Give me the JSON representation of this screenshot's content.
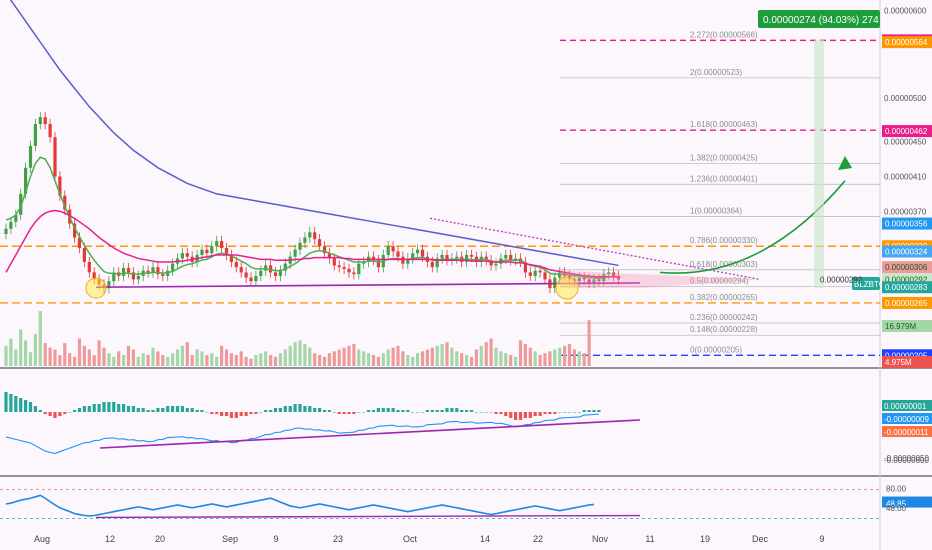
{
  "chart_data": {
    "type": "candlestick",
    "title": "",
    "symbol": "BLZBTC",
    "x_ticks": [
      "Aug",
      "12",
      "20",
      "Sep",
      "9",
      "23",
      "Oct",
      "14",
      "22",
      "Nov",
      "11",
      "19",
      "Dec",
      "9"
    ],
    "price_axis_ticks": [
      "0.00000600",
      "0.00000500",
      "0.00000450",
      "0.00000410",
      "0.00000370",
      "-0.00000600"
    ],
    "price_badges": [
      {
        "value": "0.00000566",
        "color": "#e91e8c"
      },
      {
        "value": "0.00000564",
        "color": "#ff9800"
      },
      {
        "value": "0.00000462",
        "color": "#e91e8c"
      },
      {
        "value": "0.00000356",
        "color": "#2196f3"
      },
      {
        "value": "0.00000330",
        "color": "#ff9800"
      },
      {
        "value": "0.00000324",
        "color": "#42a5f5"
      },
      {
        "value": "0.00000306",
        "color": "#ef9a9a"
      },
      {
        "value": "0.00000292",
        "color": "#c8e6c9"
      },
      {
        "value": "0.00000283",
        "color": "#26a69a"
      },
      {
        "value": "0.00000265",
        "color": "#ff9800"
      },
      {
        "value": "16.979M",
        "color": "#a5d6a7"
      },
      {
        "value": "0.00000205",
        "color": "#1e40ff"
      },
      {
        "value": "4.975M",
        "color": "#ef5350"
      }
    ],
    "current_price_label": "0.00000292",
    "target_annotation": "0.00000274 (94.03%) 274",
    "fib_levels": [
      {
        "label": "2.272(0.00000566)",
        "value": 5.66e-06
      },
      {
        "label": "2(0.00000523)",
        "value": 5.23e-06
      },
      {
        "label": "1.618(0.00000463)",
        "value": 4.63e-06
      },
      {
        "label": "1.382(0.00000425)",
        "value": 4.25e-06
      },
      {
        "label": "1.236(0.00000401)",
        "value": 4.01e-06
      },
      {
        "label": "1(0.00000364)",
        "value": 3.64e-06
      },
      {
        "label": "0.786(0.00000330)",
        "value": 3.3e-06
      },
      {
        "label": "0.618(0.00000303)",
        "value": 3.03e-06
      },
      {
        "label": "0.5(0.00000284)",
        "value": 2.84e-06
      },
      {
        "label": "0.382(0.00000265)",
        "value": 2.65e-06
      },
      {
        "label": "0.236(0.00000242)",
        "value": 2.42e-06
      },
      {
        "label": "0.148(0.00000228)",
        "value": 2.28e-06
      },
      {
        "label": "0(0.00000205)",
        "value": 2.05e-06
      }
    ],
    "price_series": [
      {
        "name": "close",
        "values": [
          350,
          358,
          366,
          390,
          420,
          445,
          470,
          478,
          470,
          455,
          410,
          388,
          372,
          356,
          340,
          328,
          312,
          300,
          292,
          286,
          282,
          290,
          300,
          296,
          305,
          300,
          292,
          296,
          302,
          300,
          306,
          298,
          296,
          302,
          310,
          316,
          322,
          318,
          312,
          320,
          326,
          322,
          330,
          336,
          328,
          320,
          312,
          306,
          300,
          294,
          290,
          296,
          302,
          308,
          300,
          296,
          302,
          310,
          318,
          326,
          334,
          340,
          346,
          338,
          330,
          322,
          316,
          308,
          306,
          304,
          300,
          298,
          310,
          312,
          318,
          314,
          306,
          320,
          330,
          324,
          318,
          310,
          316,
          322,
          326,
          318,
          312,
          306,
          316,
          320,
          314,
          316,
          318,
          312,
          320,
          318,
          312,
          318,
          314,
          308,
          310,
          316,
          320,
          314,
          316,
          312,
          300,
          296,
          302,
          300,
          292,
          282,
          294,
          300,
          296,
          292,
          290,
          294,
          292,
          288,
          292,
          290,
          298,
          300,
          296,
          292
        ]
      },
      {
        "name": "ema_fast",
        "values": [
          360,
          362,
          366,
          375,
          392,
          410,
          425,
          432,
          430,
          420,
          405,
          390,
          376,
          363,
          351,
          341,
          331,
          322,
          314,
          307,
          301,
          299,
          299,
          298,
          299,
          299,
          298,
          298,
          299,
          299,
          300,
          300,
          299,
          300,
          301,
          304,
          307,
          309,
          310,
          312,
          314,
          315,
          318,
          321,
          322,
          321,
          319,
          316,
          313,
          310,
          306,
          304,
          304,
          304,
          303,
          302,
          302,
          304,
          307,
          310,
          314,
          318,
          322,
          324,
          325,
          324,
          322,
          320,
          318,
          316,
          314,
          312,
          312,
          312,
          313,
          313,
          312,
          313,
          315,
          316,
          316,
          315,
          315,
          316,
          317,
          317,
          316,
          314,
          314,
          315,
          315,
          315,
          315,
          315,
          315,
          315,
          314,
          315,
          315,
          313,
          312,
          313,
          314,
          314,
          314,
          314,
          311,
          308,
          307,
          306,
          303,
          299,
          298,
          298,
          298,
          297,
          296,
          296,
          295,
          294,
          294,
          293,
          294,
          295,
          295,
          295
        ]
      },
      {
        "name": "ema_slow",
        "values": [
          300,
          310,
          320,
          330,
          340,
          350,
          358,
          364,
          368,
          370,
          371,
          370,
          368,
          365,
          362,
          358,
          354,
          350,
          345,
          340,
          336,
          332,
          328,
          325,
          322,
          320,
          318,
          316,
          315,
          314,
          313,
          312,
          312,
          312,
          312,
          313,
          313,
          314,
          315,
          316,
          317,
          318,
          319,
          320,
          320,
          320,
          320,
          320,
          319,
          318,
          317,
          316,
          315,
          315,
          315,
          314,
          314,
          314,
          314,
          315,
          315,
          316,
          316,
          317,
          317,
          317,
          317,
          317,
          317,
          316,
          316,
          315,
          315,
          315,
          315,
          315,
          315,
          315,
          315,
          315,
          315,
          315,
          315,
          315,
          315,
          315,
          315,
          315,
          314,
          314,
          314,
          314,
          314,
          314,
          314,
          313,
          313,
          313,
          313,
          312,
          312,
          312,
          312,
          312,
          311,
          311,
          310,
          309,
          308,
          307,
          305,
          303,
          302,
          301,
          300,
          299,
          298,
          297,
          296,
          296,
          295,
          295,
          295,
          295,
          295,
          295
        ]
      },
      {
        "name": "ema_long",
        "values": [
          620,
          612,
          604,
          596,
          588,
          580,
          572,
          564,
          556,
          548,
          540,
          532,
          525,
          518,
          511,
          504,
          497,
          490,
          484,
          478,
          472,
          466,
          460,
          455,
          450,
          445,
          440,
          436,
          432,
          428,
          424,
          420,
          417,
          414,
          411,
          408,
          405,
          402,
          400,
          398,
          396,
          394,
          392,
          390,
          389,
          388,
          387,
          386,
          385,
          384,
          383,
          382,
          381,
          380,
          379,
          378,
          377,
          376,
          375,
          374,
          373,
          372,
          371,
          370,
          369,
          368,
          367,
          366,
          365,
          364,
          363,
          362,
          361,
          360,
          359,
          358,
          357,
          356,
          355,
          354,
          353,
          352,
          351,
          350,
          349,
          348,
          347,
          346,
          345,
          344,
          343,
          342,
          341,
          340,
          339,
          338,
          337,
          336,
          335,
          334,
          333,
          332,
          331,
          330,
          329,
          328,
          327,
          326,
          325,
          324,
          323,
          322,
          321,
          320,
          319,
          318,
          317,
          316,
          315,
          314,
          313,
          312,
          311,
          310,
          309,
          308
        ]
      }
    ],
    "volume": [
      22,
      30,
      18,
      40,
      28,
      15,
      35,
      60,
      25,
      20,
      18,
      12,
      25,
      14,
      10,
      30,
      22,
      18,
      12,
      28,
      20,
      14,
      10,
      16,
      12,
      22,
      18,
      10,
      14,
      12,
      20,
      16,
      12,
      10,
      14,
      18,
      22,
      26,
      12,
      18,
      16,
      12,
      14,
      10,
      22,
      18,
      14,
      12,
      16,
      10,
      8,
      12,
      14,
      16,
      12,
      10,
      14,
      18,
      22,
      26,
      28,
      24,
      20,
      14,
      12,
      10,
      14,
      16,
      18,
      20,
      22,
      24,
      18,
      16,
      14,
      12,
      10,
      14,
      18,
      20,
      22,
      16,
      12,
      10,
      14,
      16,
      18,
      20,
      22,
      24,
      26,
      20,
      16,
      14,
      12,
      10,
      18,
      22,
      26,
      30,
      20,
      16,
      14,
      12,
      10,
      28,
      24,
      20,
      16,
      12,
      14,
      16,
      18,
      20,
      22,
      24,
      18,
      16,
      14,
      50
    ],
    "macd_hist": [
      10,
      9,
      8,
      7,
      6,
      5,
      3,
      1,
      -1,
      -2,
      -3,
      -2,
      -1,
      0,
      1,
      2,
      3,
      3,
      4,
      4,
      5,
      5,
      5,
      4,
      4,
      3,
      3,
      2,
      2,
      1,
      1,
      2,
      2,
      3,
      3,
      3,
      3,
      2,
      2,
      1,
      1,
      0,
      -1,
      -1,
      -2,
      -2,
      -3,
      -3,
      -2,
      -2,
      -1,
      -1,
      0,
      1,
      1,
      2,
      2,
      3,
      3,
      4,
      4,
      3,
      3,
      2,
      2,
      1,
      1,
      0,
      -1,
      -1,
      -1,
      -1,
      0,
      0,
      1,
      1,
      2,
      2,
      2,
      2,
      1,
      1,
      1,
      0,
      0,
      0,
      1,
      1,
      1,
      1,
      2,
      2,
      2,
      1,
      1,
      1,
      0,
      0,
      0,
      0,
      -1,
      -1,
      -2,
      -3,
      -4,
      -4,
      -3,
      -3,
      -2,
      -2,
      -1,
      -1,
      -1,
      0,
      0,
      0,
      0,
      0,
      1,
      1,
      1,
      1
    ],
    "macd_axis_ticks": [
      "0.00000001",
      "-0.00000009",
      "-0.00000011",
      "-0.00000050"
    ],
    "rsi": [
      50,
      52,
      55,
      58,
      60,
      62,
      65,
      68,
      62,
      55,
      48,
      42,
      38,
      34,
      30,
      28,
      26,
      25,
      26,
      28,
      30,
      32,
      34,
      36,
      38,
      40,
      42,
      44,
      42,
      40,
      38,
      40,
      42,
      44,
      46,
      48,
      46,
      44,
      42,
      44,
      46,
      48,
      50,
      48,
      46,
      44,
      46,
      48,
      50,
      52,
      54,
      56,
      58,
      60,
      62,
      58,
      54,
      50,
      46,
      44,
      42,
      44,
      46,
      48,
      50,
      48,
      46,
      44,
      42,
      40,
      38,
      40,
      42,
      44,
      46,
      48,
      46,
      44,
      42,
      40,
      38,
      36,
      34,
      36,
      38,
      40,
      42,
      44,
      46,
      48,
      46,
      44,
      42,
      40,
      38,
      36,
      34,
      32,
      30,
      28,
      30,
      32,
      34,
      36,
      38,
      40,
      42,
      44,
      46,
      44,
      42,
      40,
      38,
      36,
      38,
      40,
      42,
      44,
      46,
      48,
      49
    ],
    "rsi_axis_ticks": [
      "80.00",
      "48.85",
      "48.00"
    ],
    "ylim": [
      1.95e-06,
      6.1e-06
    ],
    "grid": false,
    "legend": "none"
  }
}
